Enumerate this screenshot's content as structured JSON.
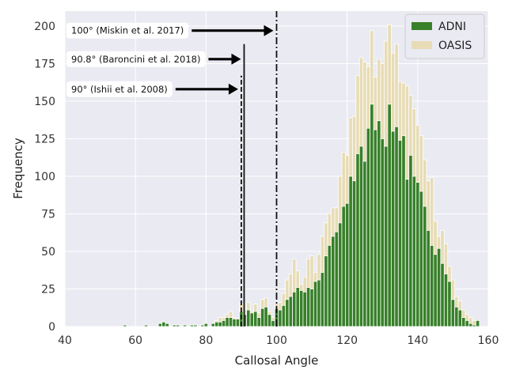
{
  "chart_data": {
    "type": "bar",
    "xlabel": "Callosal Angle",
    "ylabel": "Frequency",
    "xlim": [
      40,
      160
    ],
    "ylim": [
      0,
      210
    ],
    "xticks": [
      40,
      60,
      80,
      100,
      120,
      140,
      160
    ],
    "yticks": [
      0,
      25,
      50,
      75,
      100,
      125,
      150,
      175,
      200
    ],
    "grid": true,
    "background": "#eaeaf2",
    "legend_position": "top-right",
    "bin_width": 1,
    "series": [
      {
        "name": "ADNI",
        "color": "#38802a",
        "x": [
          57,
          63,
          67,
          68,
          69,
          71,
          72,
          74,
          76,
          77,
          79,
          80,
          82,
          83,
          84,
          85,
          86,
          87,
          88,
          89,
          90,
          91,
          92,
          93,
          94,
          95,
          96,
          97,
          98,
          99,
          100,
          101,
          102,
          103,
          104,
          105,
          106,
          107,
          108,
          109,
          110,
          111,
          112,
          113,
          114,
          115,
          116,
          117,
          118,
          119,
          120,
          121,
          122,
          123,
          124,
          125,
          126,
          127,
          128,
          129,
          130,
          131,
          132,
          133,
          134,
          135,
          136,
          137,
          138,
          139,
          140,
          141,
          142,
          143,
          144,
          145,
          146,
          147,
          148,
          149,
          150,
          151,
          152,
          153,
          154,
          155,
          156,
          157
        ],
        "values": [
          1,
          1,
          2,
          3,
          2,
          1,
          1,
          1,
          1,
          1,
          1,
          2,
          2,
          3,
          3,
          4,
          6,
          6,
          5,
          5,
          10,
          8,
          11,
          9,
          10,
          6,
          12,
          13,
          8,
          4,
          12,
          11,
          14,
          18,
          20,
          23,
          26,
          24,
          23,
          26,
          25,
          30,
          31,
          36,
          47,
          54,
          60,
          63,
          69,
          80,
          82,
          100,
          97,
          115,
          120,
          110,
          132,
          148,
          131,
          137,
          125,
          120,
          148,
          130,
          133,
          124,
          127,
          98,
          114,
          100,
          96,
          90,
          80,
          64,
          54,
          48,
          52,
          42,
          35,
          30,
          18,
          13,
          11,
          6,
          4,
          2,
          1,
          4
        ]
      },
      {
        "name": "OASIS",
        "color": "#e7dcb6",
        "x": [
          57,
          63,
          67,
          68,
          69,
          71,
          72,
          74,
          76,
          77,
          79,
          80,
          82,
          83,
          84,
          85,
          86,
          87,
          88,
          89,
          90,
          91,
          92,
          93,
          94,
          95,
          96,
          97,
          98,
          99,
          100,
          101,
          102,
          103,
          104,
          105,
          106,
          107,
          108,
          109,
          110,
          111,
          112,
          113,
          114,
          115,
          116,
          117,
          118,
          119,
          120,
          121,
          122,
          123,
          124,
          125,
          126,
          127,
          128,
          129,
          130,
          131,
          132,
          133,
          134,
          135,
          136,
          137,
          138,
          139,
          140,
          141,
          142,
          143,
          144,
          145,
          146,
          147,
          148,
          149,
          150,
          151,
          152,
          153,
          154,
          155,
          156,
          157
        ],
        "values": [
          1,
          1,
          2,
          3,
          2,
          1,
          1,
          1,
          1,
          1,
          1,
          2,
          2,
          4,
          6,
          6,
          8,
          10,
          6,
          5,
          15,
          12,
          16,
          10,
          15,
          9,
          18,
          19,
          10,
          6,
          16,
          16,
          22,
          31,
          35,
          45,
          37,
          28,
          33,
          45,
          47,
          36,
          48,
          60,
          69,
          75,
          79,
          79,
          100,
          116,
          114,
          139,
          140,
          167,
          179,
          176,
          173,
          197,
          166,
          178,
          175,
          190,
          201,
          182,
          188,
          163,
          162,
          160,
          154,
          145,
          134,
          127,
          111,
          97,
          99,
          70,
          60,
          64,
          55,
          40,
          31,
          20,
          17,
          11,
          8,
          6,
          4,
          1
        ]
      }
    ],
    "reference_lines": [
      {
        "x": 90,
        "style": "dashed",
        "ymax": 167
      },
      {
        "x": 90.8,
        "style": "solid",
        "ymax": 188
      },
      {
        "x": 100,
        "style": "dashdot",
        "ymax": 210
      }
    ],
    "annotations": [
      {
        "text": "100° (Miskin et al. 2017)",
        "arrow_to_x": 100,
        "y": 197
      },
      {
        "text": "90.8° (Baroncini et al. 2018)",
        "arrow_to_x": 90.8,
        "y": 178
      },
      {
        "text": "90° (Ishii et al. 2008)",
        "arrow_to_x": 90,
        "y": 158
      }
    ]
  }
}
